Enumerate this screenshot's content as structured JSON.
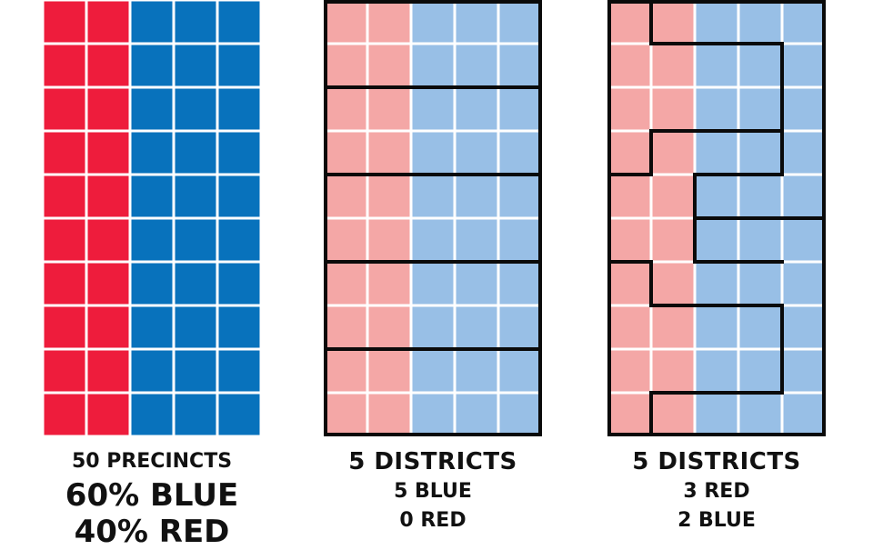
{
  "colors": {
    "red": "#ee1c3c",
    "blue": "#0872bc",
    "light_red": "#f4a7a6",
    "light_blue": "#98bfe6",
    "border": "#0a0a0a",
    "cell_gap": "#ffffff"
  },
  "grid": {
    "cols": 5,
    "rows": 10,
    "red_cols": 2,
    "blue_cols": 3
  },
  "panels": {
    "precincts": {
      "line1": "50 PRECINCTS",
      "line2": "60% BLUE",
      "line3": "40% RED"
    },
    "fair_districts": {
      "title": "5 DISTRICTS",
      "line1": "5 BLUE",
      "line2": "0 RED"
    },
    "gerrymandered": {
      "title": "5 DISTRICTS",
      "line1": "3 RED",
      "line2": "2 BLUE"
    }
  }
}
